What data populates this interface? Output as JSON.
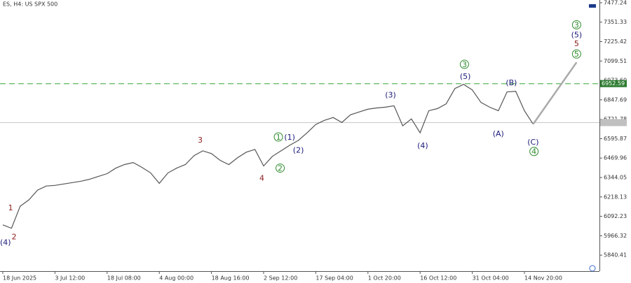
{
  "chart_data": {
    "type": "line",
    "title": "ES, H4:  US SPX 500",
    "categories": [
      "18 Jun 2025",
      null,
      null,
      null,
      null,
      null,
      "3 Jul 12:00",
      null,
      null,
      null,
      null,
      null,
      "18 Jul 08:00",
      null,
      null,
      null,
      null,
      null,
      "4 Aug 00:00",
      null,
      null,
      null,
      null,
      null,
      "18 Aug 16:00",
      null,
      null,
      null,
      null,
      null,
      "2 Sep 12:00",
      null,
      null,
      null,
      null,
      null,
      "17 Sep 04:00",
      null,
      null,
      null,
      null,
      null,
      "1 Oct 20:00",
      null,
      null,
      null,
      null,
      null,
      "16 Oct 12:00",
      null,
      null,
      null,
      null,
      null,
      "31 Oct 04:00",
      null,
      null,
      null,
      null,
      null,
      "14 Nov 20:00",
      null
    ],
    "series": [
      {
        "color": "#555555",
        "values": [
          6037,
          6015,
          6158,
          6199,
          6262,
          6289,
          6293,
          6302,
          6311,
          6320,
          6333,
          6351,
          6369,
          6405,
          6428,
          6441,
          6410,
          6374,
          6306,
          6374,
          6405,
          6428,
          6486,
          6517,
          6499,
          6455,
          6428,
          6472,
          6508,
          6526,
          6419,
          6481,
          6517,
          6553,
          6585,
          6634,
          6688,
          6715,
          6733,
          6701,
          6751,
          6769,
          6787,
          6795,
          6800,
          6809,
          6679,
          6724,
          6634,
          6777,
          6791,
          6822,
          6921,
          6948,
          6912,
          6831,
          6800,
          6777,
          6899,
          6903,
          6777,
          6690
        ]
      }
    ],
    "ylim": [
      5737,
      7495
    ],
    "yticks": [
      7477.24,
      7351.33,
      7225.42,
      7099.51,
      {
        "value": 6973.6,
        "label": "6973.60"
      },
      6847.69,
      6721.78,
      6595.87,
      6469.96,
      6344.05,
      6218.13,
      6092.23,
      5966.32,
      5840.41
    ],
    "hline": {
      "value": 6952.59,
      "color": "#5cb85c"
    },
    "current_price": 6700,
    "projection": {
      "x": [
        61,
        66
      ],
      "values": [
        6690,
        7091
      ],
      "color": "#aaaaaa"
    },
    "annotations": [
      {
        "text": "(4)",
        "x": 0.3,
        "y": 5925,
        "color": "#1a1a7a",
        "circle": false
      },
      {
        "text": "2",
        "x": 1.3,
        "y": 5961,
        "color": "#8b1a1a",
        "circle": false
      },
      {
        "text": "1",
        "x": 0.9,
        "y": 6150,
        "color": "#8b1a1a",
        "circle": false
      },
      {
        "text": "3",
        "x": 22.7,
        "y": 6589,
        "color": "#8b1a1a",
        "circle": false
      },
      {
        "text": "4",
        "x": 29.8,
        "y": 6342,
        "color": "#8b1a1a",
        "circle": false
      },
      {
        "text": "1",
        "x": 31.7,
        "y": 6607,
        "color": "#2e8b2e",
        "circle": true
      },
      {
        "text": "(1)",
        "x": 33,
        "y": 6607,
        "color": "#1a1a7a",
        "circle": false
      },
      {
        "text": "(2)",
        "x": 34,
        "y": 6522,
        "color": "#1a1a7a",
        "circle": false
      },
      {
        "text": "2",
        "x": 31.9,
        "y": 6405,
        "color": "#2e8b2e",
        "circle": true
      },
      {
        "text": "(3)",
        "x": 44.6,
        "y": 6881,
        "color": "#1a1a7a",
        "circle": false
      },
      {
        "text": "(4)",
        "x": 48.3,
        "y": 6553,
        "color": "#1a1a7a",
        "circle": false
      },
      {
        "text": "3",
        "x": 53.1,
        "y": 7078,
        "color": "#2e8b2e",
        "circle": true
      },
      {
        "text": "(5)",
        "x": 53.2,
        "y": 7002,
        "color": "#1a1a7a",
        "circle": false
      },
      {
        "text": "(A)",
        "x": 57,
        "y": 6630,
        "color": "#1a1a7a",
        "circle": false
      },
      {
        "text": "(B)",
        "x": 58.5,
        "y": 6961,
        "color": "#1a1a7a",
        "circle": false
      },
      {
        "text": "(C)",
        "x": 61,
        "y": 6576,
        "color": "#1a1a7a",
        "circle": false
      },
      {
        "text": "4",
        "x": 61.1,
        "y": 6513,
        "color": "#2e8b2e",
        "circle": true
      },
      {
        "text": "3",
        "x": 66,
        "y": 7334,
        "color": "#2e8b2e",
        "circle": true
      },
      {
        "text": "(5)",
        "x": 66,
        "y": 7271,
        "color": "#1a1a7a",
        "circle": false
      },
      {
        "text": "5",
        "x": 66,
        "y": 7213,
        "color": "#8b1a1a",
        "circle": false
      },
      {
        "text": "5",
        "x": 66,
        "y": 7145,
        "color": "#2e8b2e",
        "circle": true
      }
    ]
  }
}
